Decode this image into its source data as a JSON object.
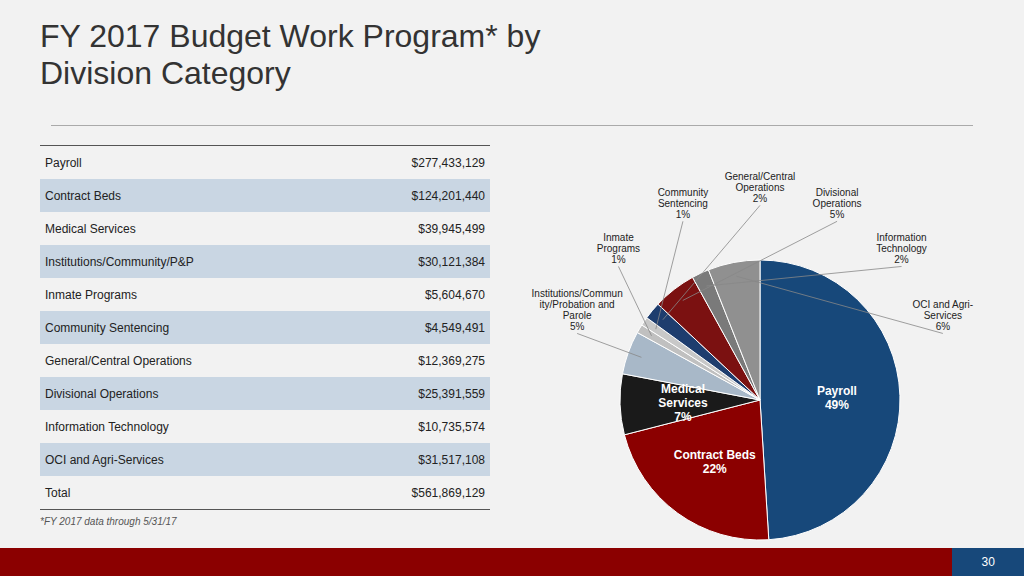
{
  "chart_data": {
    "type": "pie",
    "title": "FY 2017 Budget Work Program* by\nDivision Category",
    "categories": [
      "Payroll",
      "Contract Beds",
      "Medical\nServices",
      "Institutions/Commun\nity/Probation and\nParole",
      "Inmate\nPrograms",
      "Community\nSentencing",
      "General/Central\nOperations",
      "Divisional\nOperations",
      "Information\nTechnology",
      "OCI and Agri-\nServices"
    ],
    "values": [
      49,
      22,
      7,
      5,
      1,
      1,
      2,
      5,
      2,
      6
    ],
    "value_labels": [
      "49%",
      "22%",
      "7%",
      "5%",
      "1%",
      "1%",
      "2%",
      "5%",
      "2%",
      "6%"
    ],
    "colors": [
      "#17487a",
      "#8b0000",
      "#1a1a1a",
      "#a8b8c8",
      "#c0c0c0",
      "#c8c8c8",
      "#1e3d6e",
      "#7b1111",
      "#7a7a7a",
      "#909090"
    ],
    "table": [
      [
        "Payroll",
        "$277,433,129"
      ],
      [
        "Contract Beds",
        "$124,201,440"
      ],
      [
        "Medical Services",
        "$39,945,499"
      ],
      [
        "Institutions/Community/P&P",
        "$30,121,384"
      ],
      [
        "Inmate Programs",
        "$5,604,670"
      ],
      [
        "Community Sentencing",
        "$4,549,491"
      ],
      [
        "General/Central Operations",
        "$12,369,275"
      ],
      [
        "Divisional Operations",
        "$25,391,559"
      ],
      [
        "Information Technology",
        "$10,735,574"
      ],
      [
        "OCI and Agri-Services",
        "$31,517,108"
      ],
      [
        "Total",
        "$561,869,129"
      ]
    ],
    "footnote": "*FY 2017 data through 5/31/17",
    "page_number": "30"
  }
}
